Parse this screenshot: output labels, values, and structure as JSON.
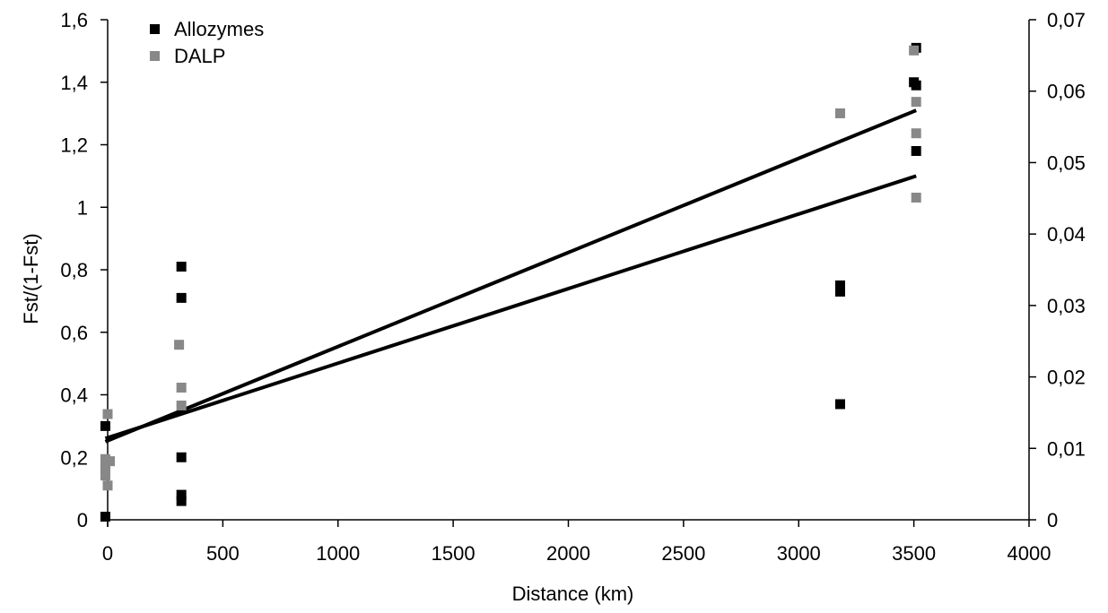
{
  "chart_data": {
    "type": "scatter",
    "title": "",
    "xlabel": "Distance (km)",
    "ylabel": "Fst/(1-Fst)",
    "y2label": "",
    "xlim": [
      0,
      4000
    ],
    "ylim": [
      0,
      1.6
    ],
    "y2lim": [
      0,
      0.07
    ],
    "x_ticks": [
      0,
      500,
      1000,
      1500,
      2000,
      2500,
      3000,
      3500,
      4000
    ],
    "y_ticks": [
      0,
      0.2,
      0.4,
      0.6,
      0.8,
      1,
      1.2,
      1.4,
      1.6
    ],
    "y2_ticks": [
      0,
      0.01,
      0.02,
      0.03,
      0.04,
      0.05,
      0.06,
      0.07
    ],
    "x_tick_labels": [
      "0",
      "500",
      "1000",
      "1500",
      "2000",
      "2500",
      "3000",
      "3500",
      "4000"
    ],
    "y_tick_labels": [
      "0",
      "0,2",
      "0,4",
      "0,6",
      "0,8",
      "1",
      "1,2",
      "1,4",
      "1,6"
    ],
    "y2_tick_labels": [
      "0",
      "0,01",
      "0,02",
      "0,03",
      "0,04",
      "0,05",
      "0,06",
      "0,07"
    ],
    "grid": false,
    "legend_position": "top-left",
    "series": [
      {
        "name": "Allozymes",
        "axis": "left",
        "color": "#000000",
        "points": [
          {
            "x": -10,
            "y": 0.3
          },
          {
            "x": -10,
            "y": 0.01
          },
          {
            "x": 320,
            "y": 0.81
          },
          {
            "x": 320,
            "y": 0.71
          },
          {
            "x": 320,
            "y": 0.2
          },
          {
            "x": 320,
            "y": 0.08
          },
          {
            "x": 320,
            "y": 0.06
          },
          {
            "x": 3180,
            "y": 0.75
          },
          {
            "x": 3180,
            "y": 0.73
          },
          {
            "x": 3180,
            "y": 0.37
          },
          {
            "x": 3510,
            "y": 1.51
          },
          {
            "x": 3500,
            "y": 1.4
          },
          {
            "x": 3510,
            "y": 1.39
          },
          {
            "x": 3510,
            "y": 1.18
          }
        ]
      },
      {
        "name": "DALP",
        "axis": "right",
        "color": "#888888",
        "points": [
          {
            "x": 0,
            "y": 0.0148
          },
          {
            "x": -10,
            "y": 0.0085
          },
          {
            "x": 10,
            "y": 0.0082
          },
          {
            "x": -10,
            "y": 0.0075
          },
          {
            "x": -10,
            "y": 0.007
          },
          {
            "x": -10,
            "y": 0.0062
          },
          {
            "x": 0,
            "y": 0.0048
          },
          {
            "x": 310,
            "y": 0.0245
          },
          {
            "x": 320,
            "y": 0.0185
          },
          {
            "x": 320,
            "y": 0.016
          },
          {
            "x": 3180,
            "y": 0.0569
          },
          {
            "x": 3500,
            "y": 0.0657
          },
          {
            "x": 3510,
            "y": 0.0585
          },
          {
            "x": 3510,
            "y": 0.0541
          },
          {
            "x": 3510,
            "y": 0.0451
          }
        ]
      }
    ],
    "trendlines": [
      {
        "axis": "left",
        "x": [
          -10,
          3510
        ],
        "y": [
          0.25,
          1.31
        ]
      },
      {
        "axis": "left",
        "x": [
          -10,
          3510
        ],
        "y": [
          0.26,
          1.1
        ]
      }
    ]
  }
}
